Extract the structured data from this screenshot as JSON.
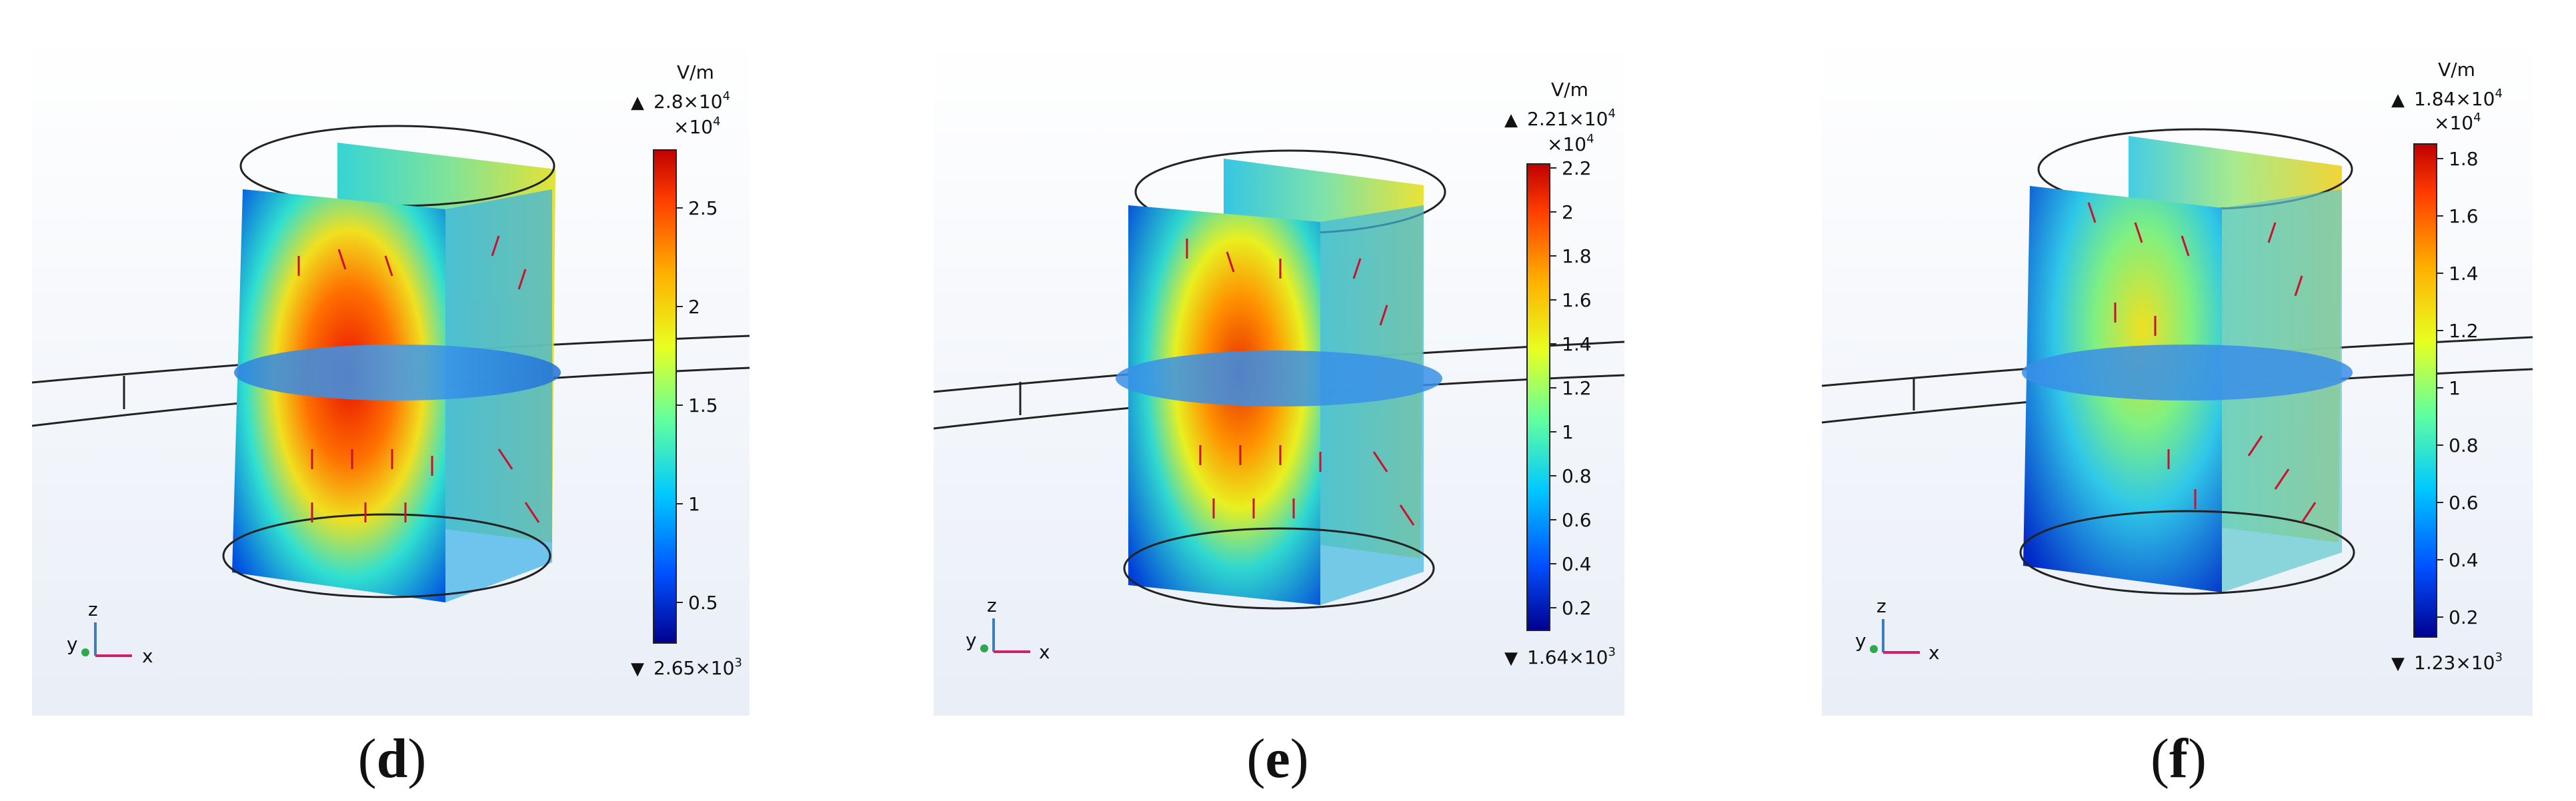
{
  "panels": [
    {
      "id": "d",
      "caption": "d",
      "unit": "V/m",
      "max_base": "2.8×10",
      "max_exp": "4",
      "scale_base": "×10",
      "scale_exp": "4",
      "min_base": "2.65×10",
      "min_exp": "3",
      "ticks": [
        "2.5",
        "2",
        "1.5",
        "1",
        "0.5"
      ]
    },
    {
      "id": "e",
      "caption": "e",
      "unit": "V/m",
      "max_base": "2.21×10",
      "max_exp": "4",
      "scale_base": "×10",
      "scale_exp": "4",
      "min_base": "1.64×10",
      "min_exp": "3",
      "ticks": [
        "2.2",
        "2",
        "1.8",
        "1.6",
        "1.4",
        "1.2",
        "1",
        "0.8",
        "0.6",
        "0.4",
        "0.2"
      ]
    },
    {
      "id": "f",
      "caption": "f",
      "unit": "V/m",
      "max_base": "1.84×10",
      "max_exp": "4",
      "scale_base": "×10",
      "scale_exp": "4",
      "min_base": "1.23×10",
      "min_exp": "3",
      "ticks": [
        "1.8",
        "1.6",
        "1.4",
        "1.2",
        "1",
        "0.8",
        "0.6",
        "0.4",
        "0.2"
      ]
    }
  ],
  "axes": {
    "z": "z",
    "y": "y",
    "x": "x"
  },
  "colormap": [
    "#00008f",
    "#0050ff",
    "#00c8ff",
    "#60ffa0",
    "#e8ff20",
    "#ffb000",
    "#ff3c00",
    "#c00000"
  ]
}
